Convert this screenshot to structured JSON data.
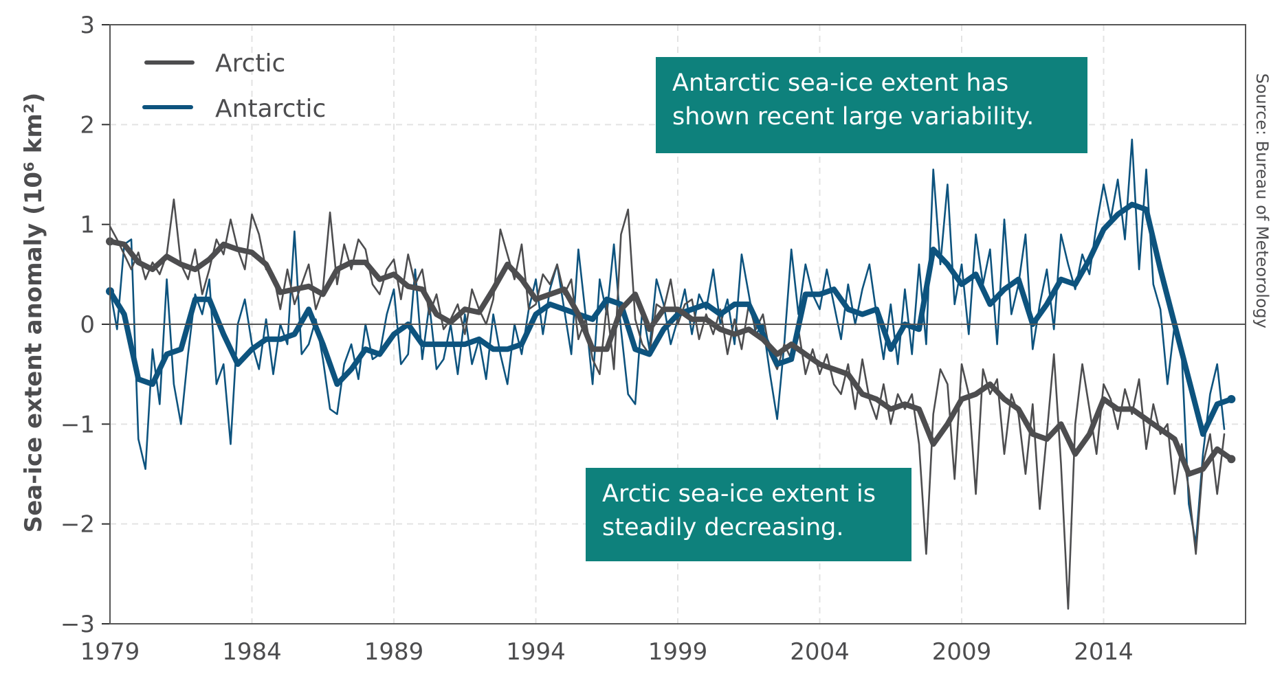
{
  "chart_data": {
    "type": "line",
    "title": "",
    "xlabel": "",
    "ylabel": "Sea-ice extent anomaly (10⁶ km²)",
    "xlim": [
      1979,
      2019
    ],
    "ylim": [
      -3,
      3
    ],
    "xticks": [
      1979,
      1984,
      1989,
      1994,
      1999,
      2004,
      2009,
      2014
    ],
    "xtick_labels": [
      "1979",
      "1984",
      "1989",
      "1994",
      "1999",
      "2004",
      "2009",
      "2014"
    ],
    "yticks": [
      3,
      2,
      1,
      0,
      -1,
      -2,
      -3
    ],
    "ytick_labels": [
      "3",
      "2",
      "1",
      "0",
      "−1",
      "−2",
      "−3"
    ],
    "grid": true,
    "legend": {
      "placement": "top-left",
      "entries": [
        "Arctic",
        "Antarctic"
      ]
    },
    "colors": {
      "Arctic": "#4d4d4f",
      "Antarctic": "#0d537e",
      "annotation_box": "#0e817c"
    },
    "annotations": [
      "Antarctic sea-ice extent has shown recent large variability.",
      "Arctic sea-ice extent is steadily decreasing."
    ],
    "annotation_lines": [
      [
        "Antarctic sea-ice extent has",
        "shown recent large variability."
      ],
      [
        "Arctic sea-ice extent is",
        "steadily decreasing."
      ]
    ],
    "source": "Source: Bureau of Meteorology",
    "series": [
      {
        "name": "Arctic",
        "kind": "raw",
        "x_first": 1979,
        "x_interval_years": 0.25,
        "values": [
          0.98,
          0.85,
          0.7,
          0.55,
          0.72,
          0.45,
          0.62,
          0.5,
          0.7,
          1.25,
          0.6,
          0.45,
          0.75,
          0.3,
          0.55,
          0.85,
          0.7,
          1.05,
          0.75,
          0.55,
          1.1,
          0.9,
          0.55,
          0.5,
          0.15,
          0.55,
          0.2,
          0.4,
          0.6,
          0.15,
          0.35,
          1.12,
          0.4,
          0.8,
          0.55,
          0.85,
          0.75,
          0.4,
          0.3,
          0.55,
          0.65,
          0.25,
          0.7,
          0.4,
          0.55,
          0.1,
          0.3,
          -0.05,
          0.05,
          0.2,
          -0.1,
          0.35,
          0.15,
          0.0,
          0.25,
          0.95,
          0.7,
          0.45,
          0.8,
          0.15,
          0.2,
          0.5,
          0.4,
          0.6,
          0.3,
          0.45,
          -0.15,
          0.05,
          -0.35,
          -0.5,
          0.2,
          -0.45,
          0.9,
          1.15,
          0.05,
          -0.2,
          -0.3,
          0.2,
          0.15,
          0.45,
          0.0,
          0.2,
          0.25,
          -0.15,
          0.1,
          -0.1,
          0.15,
          -0.3,
          0.05,
          -0.25,
          0.2,
          -0.05,
          0.1,
          -0.3,
          -0.45,
          -0.2,
          -0.35,
          -0.05,
          -0.5,
          -0.25,
          -0.5,
          -0.3,
          -0.6,
          -0.7,
          -0.4,
          -0.85,
          -0.35,
          -0.75,
          -0.95,
          -0.6,
          -1.0,
          -0.7,
          -0.85,
          -0.7,
          -1.2,
          -2.3,
          -0.9,
          -0.45,
          -0.6,
          -1.55,
          -0.4,
          -0.7,
          -1.7,
          -0.45,
          -0.7,
          -0.55,
          -1.3,
          -0.7,
          -0.9,
          -1.5,
          -0.8,
          -1.85,
          -1.1,
          -0.3,
          -1.4,
          -2.85,
          -1.0,
          -0.4,
          -0.85,
          -1.3,
          -0.6,
          -0.75,
          -1.05,
          -0.65,
          -0.9,
          -0.55,
          -1.25,
          -0.8,
          -1.1,
          -1.0,
          -1.7,
          -1.2,
          -1.65,
          -2.3,
          -1.4,
          -1.1,
          -1.7,
          -1.1
        ]
      },
      {
        "name": "Antarctic",
        "kind": "raw",
        "x_first": 1979,
        "x_interval_years": 0.25,
        "values": [
          0.35,
          -0.05,
          0.8,
          0.85,
          -1.15,
          -1.45,
          -0.25,
          -0.8,
          0.45,
          -0.6,
          -1.0,
          -0.3,
          0.3,
          0.1,
          0.45,
          -0.6,
          -0.4,
          -1.2,
          0.0,
          0.25,
          -0.2,
          -0.45,
          0.05,
          -0.5,
          0.0,
          -0.2,
          0.93,
          -0.3,
          -0.2,
          0.05,
          -0.35,
          -0.85,
          -0.9,
          -0.4,
          -0.2,
          -0.55,
          0.0,
          -0.35,
          -0.3,
          0.1,
          0.35,
          -0.4,
          -0.3,
          0.55,
          -0.35,
          0.2,
          -0.45,
          -0.35,
          0.0,
          -0.5,
          0.1,
          -0.4,
          -0.15,
          -0.55,
          0.1,
          -0.3,
          -0.6,
          0.0,
          -0.3,
          0.15,
          0.45,
          -0.1,
          0.35,
          0.6,
          0.15,
          -0.3,
          0.75,
          0.1,
          -0.6,
          0.45,
          0.1,
          0.8,
          -0.05,
          -0.7,
          -0.8,
          0.15,
          -0.25,
          0.45,
          0.2,
          -0.2,
          0.05,
          0.35,
          -0.1,
          0.3,
          0.15,
          0.55,
          0.0,
          0.25,
          -0.2,
          0.7,
          0.3,
          -0.1,
          0.0,
          -0.5,
          -0.95,
          -0.2,
          0.75,
          0.1,
          0.6,
          0.3,
          0.15,
          0.55,
          0.2,
          -0.15,
          0.4,
          0.0,
          0.35,
          0.6,
          0.1,
          -0.35,
          0.2,
          -0.4,
          0.35,
          -0.3,
          0.6,
          -0.2,
          1.55,
          0.6,
          1.4,
          0.2,
          0.6,
          -0.1,
          0.9,
          0.4,
          0.75,
          -0.2,
          1.05,
          0.1,
          0.4,
          0.9,
          -0.25,
          0.2,
          0.55,
          -0.05,
          0.9,
          0.6,
          0.35,
          0.7,
          0.5,
          1.0,
          1.4,
          1.05,
          1.45,
          0.85,
          1.85,
          0.55,
          1.55,
          0.4,
          0.15,
          -0.6,
          0.0,
          -0.3,
          -1.8,
          -2.2,
          -1.3,
          -0.7,
          -0.4,
          -1.05
        ]
      },
      {
        "name": "Arctic",
        "kind": "running-mean",
        "x_first": 1979,
        "x_interval_years": 0.5,
        "values": [
          0.83,
          0.8,
          0.62,
          0.55,
          0.68,
          0.6,
          0.55,
          0.65,
          0.8,
          0.75,
          0.72,
          0.6,
          0.32,
          0.35,
          0.38,
          0.3,
          0.55,
          0.62,
          0.62,
          0.45,
          0.5,
          0.38,
          0.35,
          0.1,
          0.02,
          0.15,
          0.12,
          0.35,
          0.6,
          0.45,
          0.25,
          0.3,
          0.35,
          0.1,
          -0.25,
          -0.25,
          0.15,
          0.3,
          -0.05,
          0.15,
          0.15,
          0.05,
          0.05,
          -0.05,
          -0.1,
          -0.05,
          -0.15,
          -0.3,
          -0.2,
          -0.3,
          -0.4,
          -0.45,
          -0.5,
          -0.7,
          -0.75,
          -0.85,
          -0.8,
          -0.85,
          -1.2,
          -1.0,
          -0.75,
          -0.7,
          -0.6,
          -0.75,
          -0.85,
          -1.1,
          -1.15,
          -1.0,
          -1.3,
          -1.1,
          -0.75,
          -0.85,
          -0.85,
          -0.95,
          -1.05,
          -1.15,
          -1.5,
          -1.45,
          -1.25,
          -1.35
        ]
      },
      {
        "name": "Antarctic",
        "kind": "running-mean",
        "x_first": 1979,
        "x_interval_years": 0.5,
        "values": [
          0.33,
          0.1,
          -0.55,
          -0.6,
          -0.3,
          -0.25,
          0.25,
          0.25,
          -0.1,
          -0.4,
          -0.25,
          -0.15,
          -0.15,
          -0.1,
          0.15,
          -0.2,
          -0.6,
          -0.45,
          -0.25,
          -0.3,
          -0.1,
          0.0,
          -0.2,
          -0.2,
          -0.2,
          -0.2,
          -0.15,
          -0.25,
          -0.25,
          -0.2,
          0.1,
          0.2,
          0.15,
          0.1,
          0.05,
          0.25,
          0.2,
          -0.25,
          -0.3,
          -0.05,
          0.1,
          0.15,
          0.2,
          0.1,
          0.2,
          0.2,
          -0.1,
          -0.4,
          -0.35,
          0.3,
          0.3,
          0.35,
          0.15,
          0.1,
          0.15,
          -0.25,
          0.0,
          -0.05,
          0.75,
          0.6,
          0.4,
          0.5,
          0.2,
          0.35,
          0.45,
          0.0,
          0.2,
          0.45,
          0.4,
          0.65,
          0.95,
          1.1,
          1.2,
          1.15,
          0.55,
          0.0,
          -0.55,
          -1.1,
          -0.8,
          -0.75
        ]
      }
    ]
  }
}
